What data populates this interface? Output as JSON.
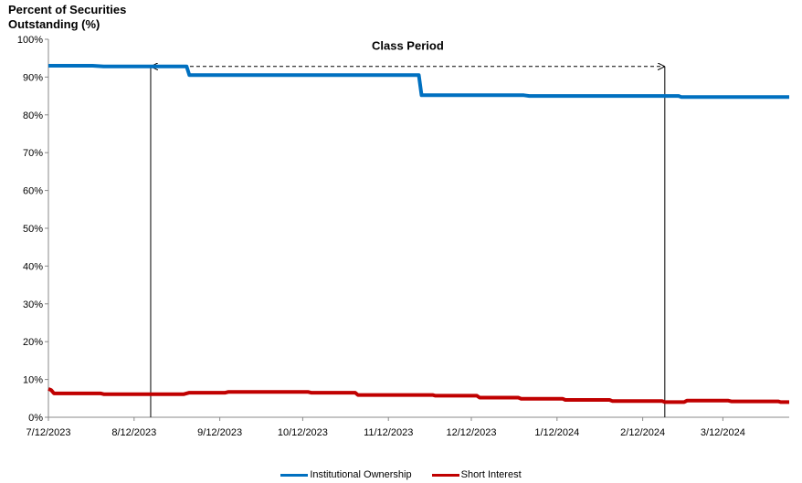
{
  "chart_data": {
    "type": "line",
    "title": "",
    "ylabel_line1": "Percent of Securities",
    "ylabel_line2": "Outstanding (%)",
    "ylim": [
      0,
      100
    ],
    "y_ticks": [
      "0%",
      "10%",
      "20%",
      "30%",
      "40%",
      "50%",
      "60%",
      "70%",
      "80%",
      "90%",
      "100%"
    ],
    "x_range": [
      "2023-07-12",
      "2024-04-05"
    ],
    "x_ticks": [
      "7/12/2023",
      "8/12/2023",
      "9/12/2023",
      "10/12/2023",
      "11/12/2023",
      "12/12/2023",
      "1/12/2024",
      "2/12/2024",
      "3/12/2024"
    ],
    "grid": false,
    "legend_position": "bottom",
    "annotation": {
      "label": "Class Period",
      "start": "2023-08-18",
      "end": "2024-02-20"
    },
    "series": [
      {
        "name": "Institutional Ownership",
        "color": "#0070C0",
        "x": [
          "2023-07-12",
          "2023-07-28",
          "2023-08-01",
          "2023-08-18",
          "2023-08-29",
          "2023-08-31",
          "2023-09-01",
          "2023-11-23",
          "2023-11-24",
          "2023-12-31",
          "2024-01-02",
          "2024-02-25",
          "2024-02-26",
          "2024-04-05"
        ],
        "values": [
          93.0,
          93.0,
          92.8,
          92.8,
          92.8,
          92.8,
          90.5,
          90.5,
          85.2,
          85.2,
          85.0,
          85.0,
          84.7,
          84.7
        ]
      },
      {
        "name": "Short Interest",
        "color": "#C00000",
        "x": [
          "2023-07-12",
          "2023-07-13",
          "2023-07-14",
          "2023-07-31",
          "2023-08-01",
          "2023-08-30",
          "2023-09-01",
          "2023-09-14",
          "2023-09-15",
          "2023-10-14",
          "2023-10-15",
          "2023-10-31",
          "2023-11-01",
          "2023-11-28",
          "2023-11-29",
          "2023-12-14",
          "2023-12-15",
          "2023-12-29",
          "2023-12-30",
          "2024-01-14",
          "2024-01-15",
          "2024-01-31",
          "2024-02-01",
          "2024-02-19",
          "2024-02-20",
          "2024-02-27",
          "2024-02-28",
          "2024-03-14",
          "2024-03-15",
          "2024-04-01",
          "2024-04-02",
          "2024-04-05"
        ],
        "values": [
          7.5,
          7.2,
          6.3,
          6.3,
          6.1,
          6.1,
          6.5,
          6.5,
          6.7,
          6.7,
          6.5,
          6.5,
          5.9,
          5.9,
          5.7,
          5.7,
          5.2,
          5.2,
          4.9,
          4.9,
          4.6,
          4.6,
          4.3,
          4.3,
          4.0,
          4.0,
          4.4,
          4.4,
          4.2,
          4.2,
          4.0,
          4.0
        ]
      }
    ]
  }
}
